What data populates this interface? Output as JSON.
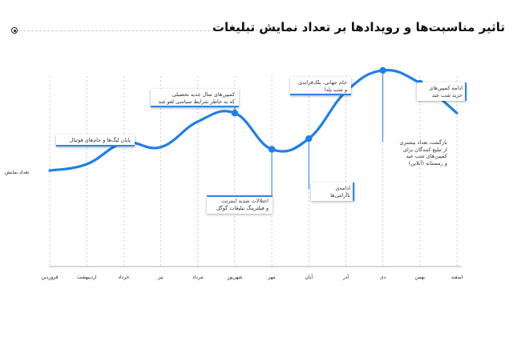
{
  "title": "تاثیر مناسبت‌ها و رویدادها بر تعداد نمایش تبلیغات",
  "chart_data": {
    "type": "line",
    "title": "تاثیر مناسبت‌ها و رویدادها بر تعداد نمایش تبلیغات",
    "xlabel": "",
    "ylabel": "تعداد نمایش",
    "categories": [
      "فروردین",
      "اردیبهشت",
      "خرداد",
      "تیر",
      "مرداد",
      "شهریور",
      "مهر",
      "آبان",
      "آذر",
      "دی",
      "بهمن",
      "اسفند"
    ],
    "x_positions": [
      0,
      1,
      2,
      3,
      4,
      5,
      6,
      7,
      8,
      9,
      10,
      11
    ],
    "values": [
      45,
      48,
      58,
      56,
      68,
      72,
      55,
      60,
      82,
      92,
      86,
      72
    ],
    "grid": true,
    "ylim": [
      0,
      110
    ],
    "line_color": "#1f7fe8",
    "highlight_points": [
      {
        "month": "خرداد",
        "value": 58
      },
      {
        "month": "شهریور",
        "value": 72
      },
      {
        "month": "مهر",
        "value": 55
      },
      {
        "month": "آبان",
        "value": 60
      },
      {
        "month": "آذر",
        "value": 82
      },
      {
        "month": "دی",
        "value": 92
      },
      {
        "month": "بهمن",
        "value": 86
      }
    ],
    "annotations": [
      "پایان لیگ‌ها و جام‌های فوتبال",
      "کمپین‌های سال جدید تحصیلی\nکه به خاطر شرایط سیاسی لغو شد",
      "اختلالات شدید اینترنت\nو فیلترینگ تبلیغات گوگل",
      "ادامه‌ی ناآرامی‌ها",
      "جام جهانی، بلک‌فرایدی\nو شب یلدا",
      "بازگشت تعداد بیشتری\nاز تبلیغ کنندگان برای\nکمپین‌های شب عید\nو رمستانه (آنلاین)",
      "ادامه کمپین‌های\nخرید شب عید"
    ]
  }
}
